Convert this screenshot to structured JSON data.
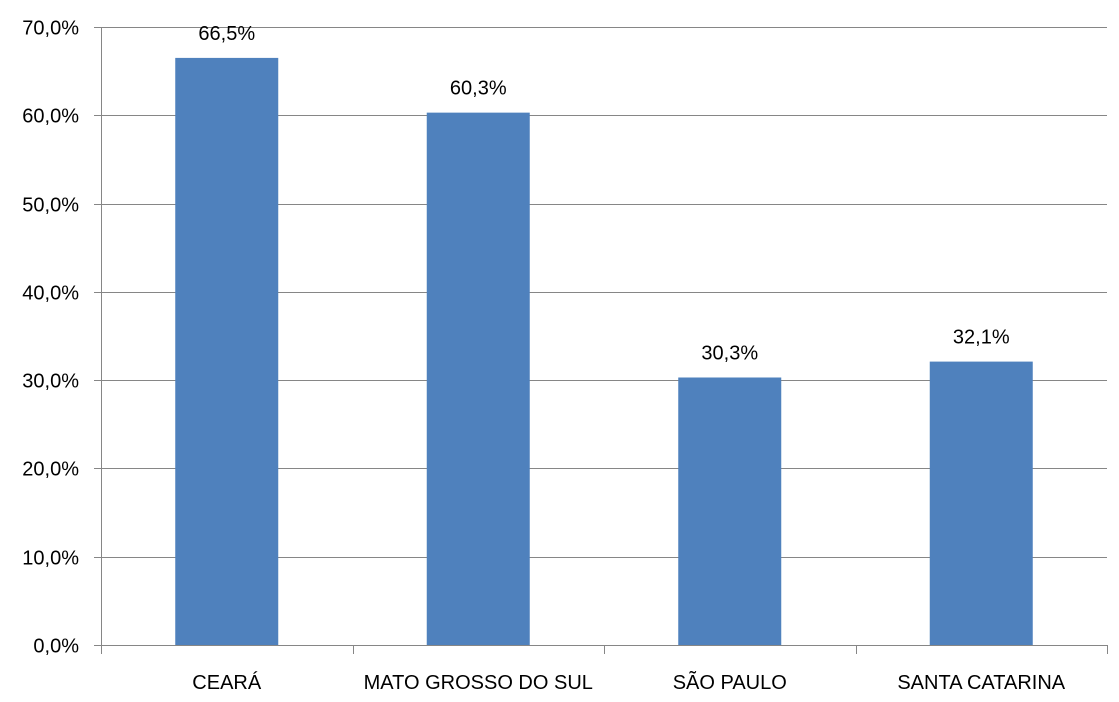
{
  "chart_data": {
    "type": "bar",
    "categories": [
      "CEARÁ",
      "MATO GROSSO DO SUL",
      "SÃO PAULO",
      "SANTA CATARINA"
    ],
    "values": [
      66.5,
      60.3,
      30.3,
      32.1
    ],
    "value_labels": [
      "66,5%",
      "60,3%",
      "30,3%",
      "32,1%"
    ],
    "ylim": [
      0,
      70
    ],
    "yticks": [
      0,
      10,
      20,
      30,
      40,
      50,
      60,
      70
    ],
    "ytick_labels": [
      "0,0%",
      "10,0%",
      "20,0%",
      "30,0%",
      "40,0%",
      "50,0%",
      "60,0%",
      "70,0%"
    ],
    "title": "",
    "xlabel": "",
    "ylabel": "",
    "grid": true,
    "legend": "none",
    "colors": {
      "bar": "#4F81BD",
      "grid": "#868686",
      "axis": "#868686"
    }
  }
}
